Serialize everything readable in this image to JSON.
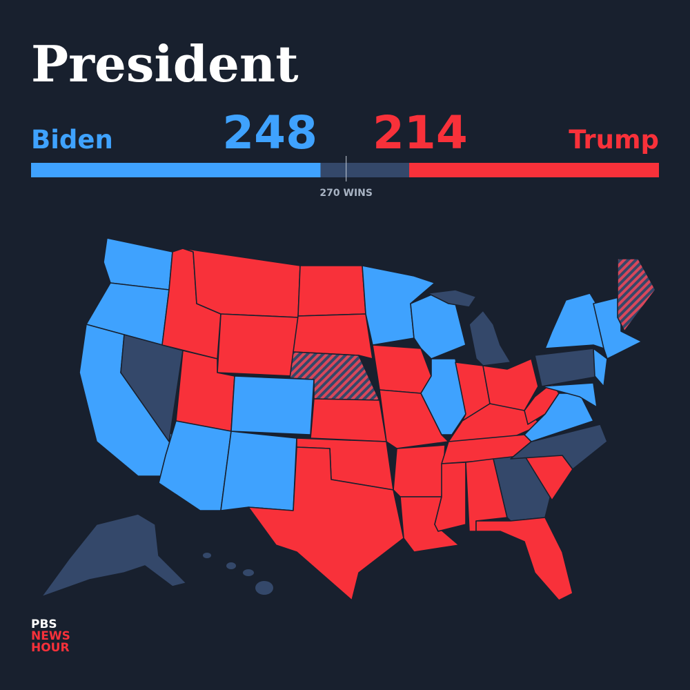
{
  "race": {
    "title": "President",
    "candidates": [
      {
        "name": "Biden",
        "votes": 248,
        "color": "#3fa2fe"
      },
      {
        "name": "Trump",
        "votes": 214,
        "color": "#f8313a"
      }
    ],
    "threshold": {
      "value": 270,
      "label": "270 WINS"
    },
    "xlim": [
      0,
      538
    ],
    "track_color": "#34486a"
  },
  "logo": {
    "lines": [
      "PBS",
      "NEWS",
      "HOUR"
    ]
  }
}
